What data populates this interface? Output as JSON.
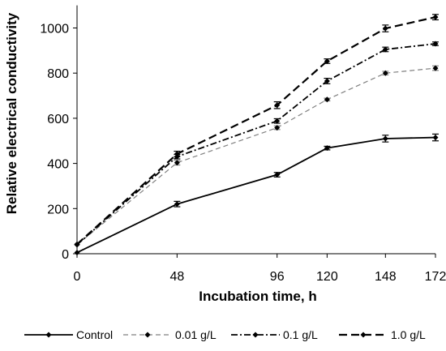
{
  "chart_data": {
    "type": "line",
    "title": "",
    "xlabel": "Incubation time, h",
    "ylabel": "Relative electrical conductivity",
    "x": [
      0,
      48,
      96,
      120,
      148,
      172
    ],
    "x_tick_labels": [
      "0",
      "48",
      "96",
      "120",
      "148",
      "172"
    ],
    "y_ticks": [
      0,
      200,
      400,
      600,
      800,
      1000
    ],
    "ylim": [
      0,
      1100
    ],
    "grid": false,
    "legend_position": "bottom",
    "series": [
      {
        "name": "Control",
        "values": [
          5,
          220,
          350,
          468,
          510,
          515
        ],
        "errors": [
          3,
          12,
          10,
          8,
          15,
          15
        ],
        "color": "#000000",
        "dash": "solid",
        "width": 1.8
      },
      {
        "name": "0.01 g/L",
        "values": [
          40,
          403,
          558,
          683,
          800,
          822
        ],
        "errors": [
          5,
          10,
          8,
          6,
          8,
          10
        ],
        "color": "#808080",
        "dash": "dashed-light",
        "width": 1.2
      },
      {
        "name": "0.1 g/L",
        "values": [
          40,
          430,
          588,
          765,
          905,
          930
        ],
        "errors": [
          5,
          10,
          10,
          12,
          10,
          8
        ],
        "color": "#000000",
        "dash": "dashdot",
        "width": 1.8
      },
      {
        "name": "1.0 g/L",
        "values": [
          42,
          442,
          658,
          853,
          998,
          1048
        ],
        "errors": [
          5,
          12,
          15,
          10,
          15,
          12
        ],
        "color": "#000000",
        "dash": "dashed-bold",
        "width": 2.2
      }
    ]
  }
}
